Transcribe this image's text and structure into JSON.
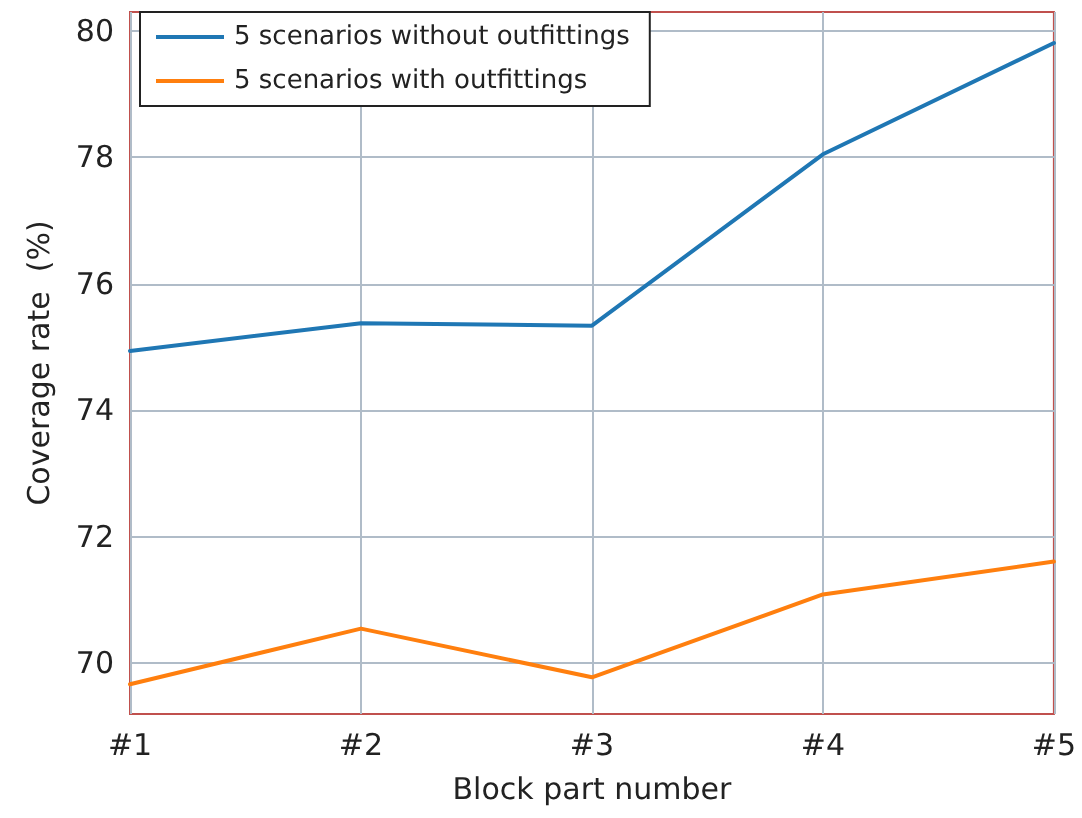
{
  "chart_data": {
    "type": "line",
    "xlabel": "Block part number",
    "ylabel": "Coverage rate  (%)",
    "categories": [
      "#1",
      "#2",
      "#3",
      "#4",
      "#5"
    ],
    "series": [
      {
        "name": "5 scenarios without outfittings",
        "color": "#1f77b4",
        "values": [
          74.94,
          75.38,
          75.34,
          78.05,
          79.81
        ]
      },
      {
        "name": "5 scenarios with outfittings",
        "color": "#ff7f0e",
        "values": [
          69.67,
          70.55,
          69.78,
          71.09,
          71.61
        ]
      }
    ],
    "ylim": [
      69.2,
      80.3
    ],
    "yticks": [
      70,
      72,
      74,
      76,
      78,
      80
    ],
    "grid": true,
    "legend": "top left",
    "marker": "none",
    "line_style": "solid"
  }
}
